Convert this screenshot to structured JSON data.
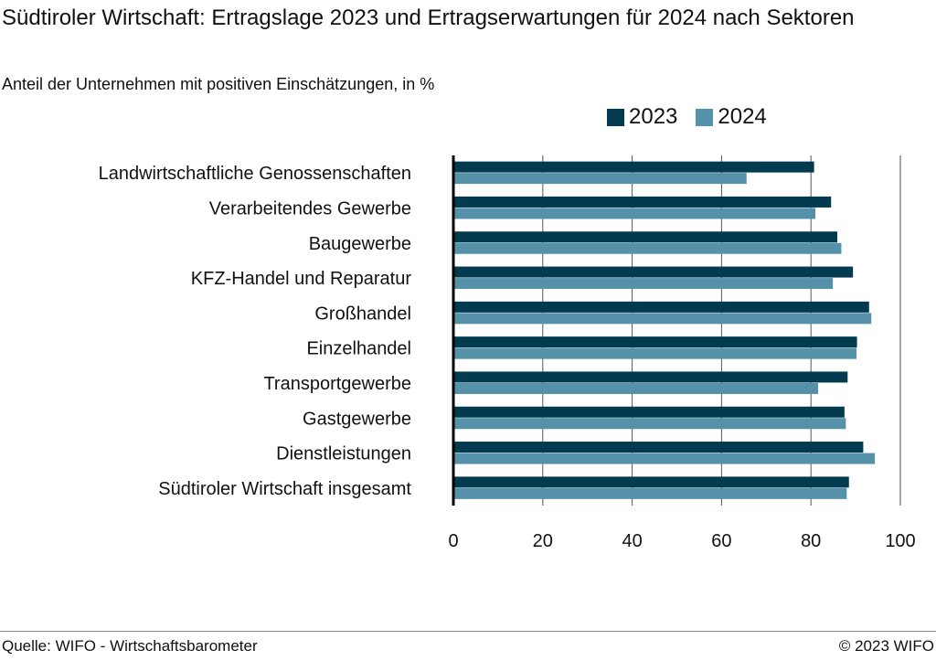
{
  "title": "Südtiroler Wirtschaft: Ertragslage 2023 und Ertragserwartungen für 2024 nach Sektoren",
  "subtitle": "Anteil der Unternehmen mit positiven Einschätzungen, in %",
  "source": "Quelle: WIFO - Wirtschaftsbarometer",
  "copyright": "© 2023 WIFO",
  "colors": {
    "series_2023": "#023a4f",
    "series_2024": "#5592aa"
  },
  "chart_data": {
    "type": "bar",
    "orientation": "horizontal",
    "title": "Südtiroler Wirtschaft: Ertragslage 2023 und Ertragserwartungen für 2024 nach Sektoren",
    "subtitle": "Anteil der Unternehmen mit positiven Einschätzungen, in %",
    "xlabel": "",
    "ylabel": "",
    "xlim": [
      0,
      100
    ],
    "xticks": [
      "0",
      "20",
      "40",
      "60",
      "80",
      "100"
    ],
    "grid": true,
    "legend": "top-right",
    "categories": [
      "Landwirtschaftliche Genossenschaften",
      "Verarbeitendes Gewerbe",
      "Baugewerbe",
      "KFZ-Handel und Reparatur",
      "Großhandel",
      "Einzelhandel",
      "Transportgewerbe",
      "Gastgewerbe",
      "Dienstleistungen",
      "Südtiroler Wirtschaft insgesamt"
    ],
    "series": [
      {
        "name": "2023",
        "values": [
          80.7,
          84.5,
          85.9,
          89.4,
          93.0,
          90.3,
          88.2,
          87.5,
          91.7,
          88.5
        ]
      },
      {
        "name": "2024",
        "values": [
          65.6,
          81.0,
          86.8,
          84.9,
          93.5,
          90.2,
          81.6,
          87.8,
          94.3,
          88.0
        ]
      }
    ]
  }
}
